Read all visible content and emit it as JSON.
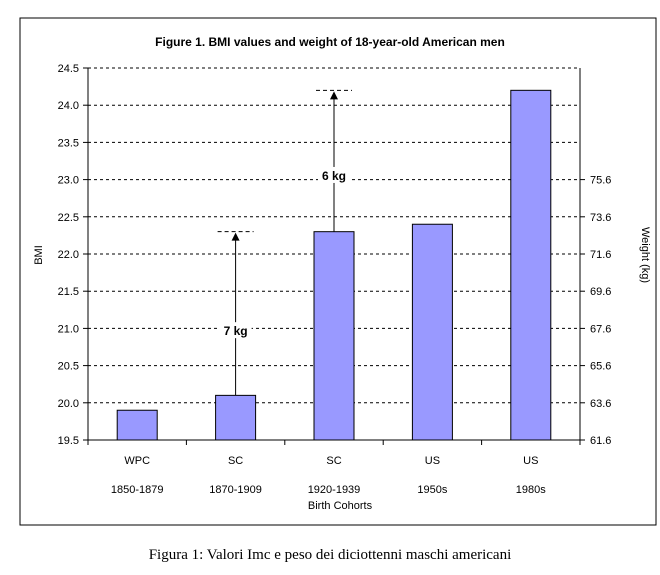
{
  "chart_data": {
    "type": "bar",
    "title": "Figure 1. BMI values and weight of 18-year-old American men",
    "xlabel": "Birth Cohorts",
    "ylabel": "BMI",
    "y2label": "Weight (kg)",
    "ylim": [
      19.5,
      24.5
    ],
    "y_ticks": [
      "19.5",
      "20.0",
      "20.5",
      "21.0",
      "21.5",
      "22.0",
      "22.5",
      "23.0",
      "23.5",
      "24.0",
      "24.5"
    ],
    "y2_ticks": [
      "61.6",
      "63.6",
      "65.6",
      "67.6",
      "69.6",
      "71.6",
      "73.6",
      "75.6"
    ],
    "categories": [
      {
        "label": "WPC",
        "period": "1850-1879"
      },
      {
        "label": "SC",
        "period": "1870-1909"
      },
      {
        "label": "SC",
        "period": "1920-1939"
      },
      {
        "label": "US",
        "period": "1950s"
      },
      {
        "label": "US",
        "period": "1980s"
      }
    ],
    "values": [
      19.9,
      20.1,
      22.3,
      22.4,
      24.2
    ],
    "bar_color": "#9999ff",
    "grid": true,
    "annotations": [
      {
        "text": "7 kg",
        "category_index": 1,
        "from": 20.1,
        "to": 22.3
      },
      {
        "text": "6 kg",
        "category_index": 2,
        "from": 22.3,
        "to": 24.2
      }
    ]
  },
  "caption": "Figura 1: Valori Imc e peso dei diciottenni maschi americani"
}
